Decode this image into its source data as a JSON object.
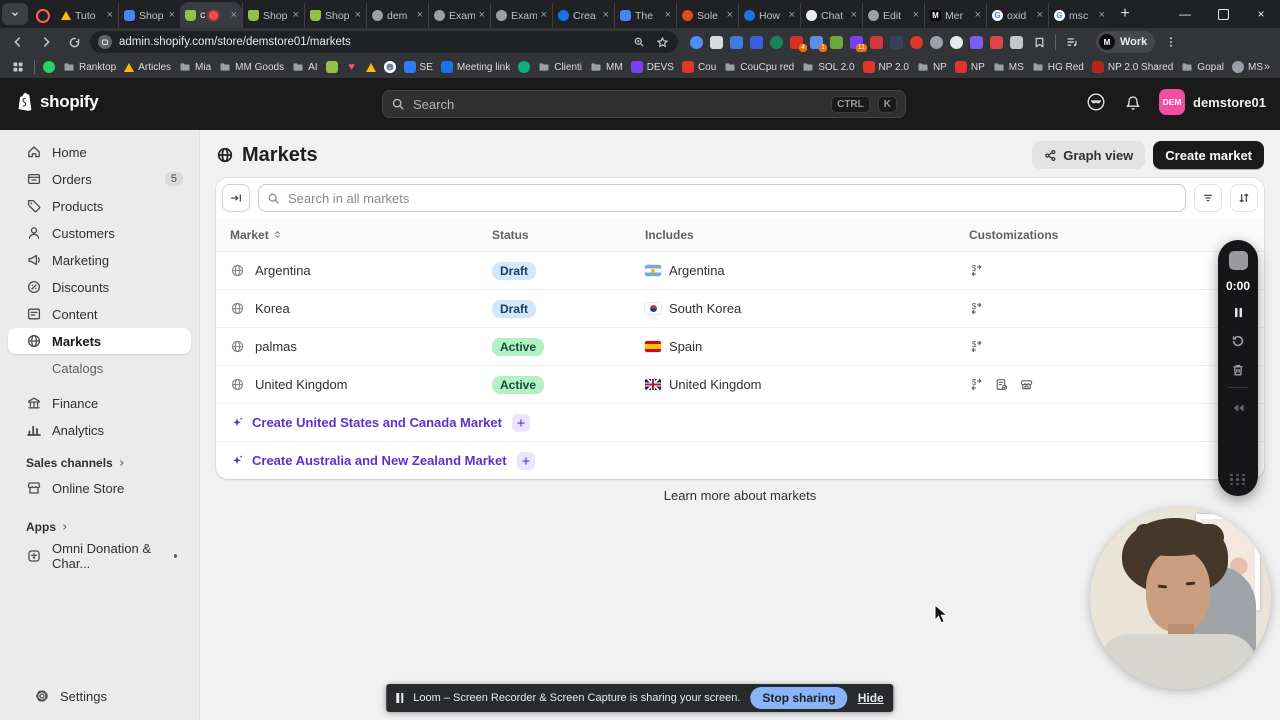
{
  "browser": {
    "tabs": [
      {
        "title": "Tuto",
        "icon": "drive"
      },
      {
        "title": "Shop",
        "icon": "bluedoc"
      },
      {
        "title": "c",
        "icon": "shopify",
        "active": true,
        "recording": true
      },
      {
        "title": "Shop",
        "icon": "shopify"
      },
      {
        "title": "Shop",
        "icon": "shopify"
      },
      {
        "title": "dem",
        "icon": "globe"
      },
      {
        "title": "Exam",
        "icon": "globe"
      },
      {
        "title": "Exam",
        "icon": "globe"
      },
      {
        "title": "Crea",
        "icon": "blueapp"
      },
      {
        "title": "The",
        "icon": "bluedoc"
      },
      {
        "title": "Sole",
        "icon": "figma"
      },
      {
        "title": "How",
        "icon": "blueapp"
      },
      {
        "title": "Chat",
        "icon": "chatgpt"
      },
      {
        "title": "Edit",
        "icon": "globe"
      },
      {
        "title": "Mer",
        "icon": "black",
        "letter": "M"
      },
      {
        "title": "oxid",
        "icon": "google",
        "letter": "G"
      },
      {
        "title": "msc",
        "icon": "google",
        "letter": "G"
      }
    ],
    "close_glyph": "×",
    "new_tab_glyph": "+",
    "url": "admin.shopify.com/store/demstore01/markets",
    "profile": "Work",
    "extensions": [
      {
        "name": "ext-blue-circle",
        "color": "#4e8cf7",
        "round": true
      },
      {
        "name": "ext-pen",
        "color": "#d8dadd"
      },
      {
        "name": "ext-mail",
        "color": "#3f7de0"
      },
      {
        "name": "ext-auth",
        "color": "#3b5fe0"
      },
      {
        "name": "ext-grammarly",
        "color": "#15865c",
        "round": true
      },
      {
        "name": "ext-red",
        "color": "#d93025",
        "badge": "4"
      },
      {
        "name": "ext-blue-orange",
        "color": "#5b8def",
        "badge": "1"
      },
      {
        "name": "ext-green",
        "color": "#6fa53a"
      },
      {
        "name": "ext-purple",
        "color": "#7b3ff2",
        "badge": "11"
      },
      {
        "name": "ext-red-s",
        "color": "#d4373e"
      },
      {
        "name": "ext-navy-s",
        "color": "#33435e"
      },
      {
        "name": "ext-red-oval",
        "color": "#e0362c",
        "round": true
      },
      {
        "name": "ext-search",
        "color": "#9aa0a6",
        "round": true
      },
      {
        "name": "ext-contrast",
        "color": "#e8eaed",
        "round": true
      },
      {
        "name": "ext-wave",
        "color": "#7c5ff0"
      },
      {
        "name": "ext-runner",
        "color": "#e04545"
      },
      {
        "name": "ext-clipboard",
        "color": "#c3c7cc"
      }
    ],
    "bookmarks": [
      {
        "label": "",
        "icon": "whatsapp"
      },
      {
        "label": "Ranktop",
        "icon": "folder"
      },
      {
        "label": "Articles",
        "icon": "drive"
      },
      {
        "label": "Mia",
        "icon": "folder"
      },
      {
        "label": "MM Goods",
        "icon": "folder"
      },
      {
        "label": "AI",
        "icon": "folder"
      },
      {
        "label": "",
        "icon": "shopify"
      },
      {
        "label": "",
        "icon": "heart"
      },
      {
        "label": "",
        "icon": "drive"
      },
      {
        "label": "",
        "icon": "chrome"
      },
      {
        "label": "SE",
        "icon": "zap"
      },
      {
        "label": "Meeting link",
        "icon": "calendar"
      },
      {
        "label": "",
        "icon": "greenapp"
      },
      {
        "label": "Clienti",
        "icon": "folder"
      },
      {
        "label": "MM",
        "icon": "folder"
      },
      {
        "label": "DEVS",
        "icon": "purple"
      },
      {
        "label": "Cou",
        "icon": "red"
      },
      {
        "label": "CouCpu red",
        "icon": "folder"
      },
      {
        "label": "SOL 2.0",
        "icon": "folder"
      },
      {
        "label": "NP 2.0",
        "icon": "red"
      },
      {
        "label": "NP",
        "icon": "folder"
      },
      {
        "label": "NP",
        "icon": "red"
      },
      {
        "label": "MS",
        "icon": "folder"
      },
      {
        "label": "HG Red",
        "icon": "folder"
      },
      {
        "label": "NP 2.0 Shared",
        "icon": "redblack"
      },
      {
        "label": "Gopal",
        "icon": "folder"
      },
      {
        "label": "MS Shared",
        "icon": "globe"
      }
    ],
    "bookmarks_overflow_glyph": "»"
  },
  "header": {
    "logo": "shopify",
    "search_placeholder": "Search",
    "shortcut": [
      "CTRL",
      "K"
    ],
    "store": {
      "initials": "DEM",
      "name": "demstore01"
    }
  },
  "sidebar": {
    "items": [
      {
        "label": "Home",
        "icon": "home"
      },
      {
        "label": "Orders",
        "icon": "orders",
        "badge": "5"
      },
      {
        "label": "Products",
        "icon": "products"
      },
      {
        "label": "Customers",
        "icon": "customers"
      },
      {
        "label": "Marketing",
        "icon": "marketing"
      },
      {
        "label": "Discounts",
        "icon": "discounts"
      },
      {
        "label": "Content",
        "icon": "content"
      },
      {
        "label": "Markets",
        "icon": "markets",
        "selected": true
      },
      {
        "label": "Catalogs",
        "sub": true
      },
      {
        "label": "Finance",
        "icon": "finance",
        "gap": true
      },
      {
        "label": "Analytics",
        "icon": "analytics"
      }
    ],
    "sales_channels_label": "Sales channels",
    "online_store": "Online Store",
    "apps_label": "Apps",
    "app_item": "Omni Donation & Char...",
    "settings": "Settings"
  },
  "page": {
    "title": "Markets",
    "graph_view_label": "Graph view",
    "create_market_label": "Create market",
    "search_placeholder": "Search in all markets",
    "columns": [
      "Market",
      "Status",
      "Includes",
      "Customizations"
    ],
    "rows": [
      {
        "name": "Argentina",
        "status": "Draft",
        "country": "Argentina",
        "flag": "ar",
        "customizations": [
          "exchange"
        ]
      },
      {
        "name": "Korea",
        "status": "Draft",
        "country": "South Korea",
        "flag": "kr",
        "customizations": [
          "exchange"
        ]
      },
      {
        "name": "palmas",
        "status": "Active",
        "country": "Spain",
        "flag": "es",
        "customizations": [
          "exchange"
        ]
      },
      {
        "name": "United Kingdom",
        "status": "Active",
        "country": "United Kingdom",
        "flag": "gb",
        "customizations": [
          "exchange",
          "catalog",
          "storefront"
        ]
      }
    ],
    "status_colors": {
      "Draft": {
        "bg": "#d2e7fb",
        "fg": "#16405c"
      },
      "Active": {
        "bg": "#b5f0c5",
        "fg": "#0b5137"
      }
    },
    "suggestions": [
      "Create United States and Canada Market",
      "Create Australia and New Zealand Market"
    ],
    "suggestion_color": "#5c31d4",
    "learn_more": "Learn more about markets"
  },
  "loom": {
    "timer": "0:00",
    "banner_text": "Loom – Screen Recorder & Screen Capture is sharing your screen.",
    "stop_sharing_label": "Stop sharing",
    "hide_label": "Hide"
  }
}
